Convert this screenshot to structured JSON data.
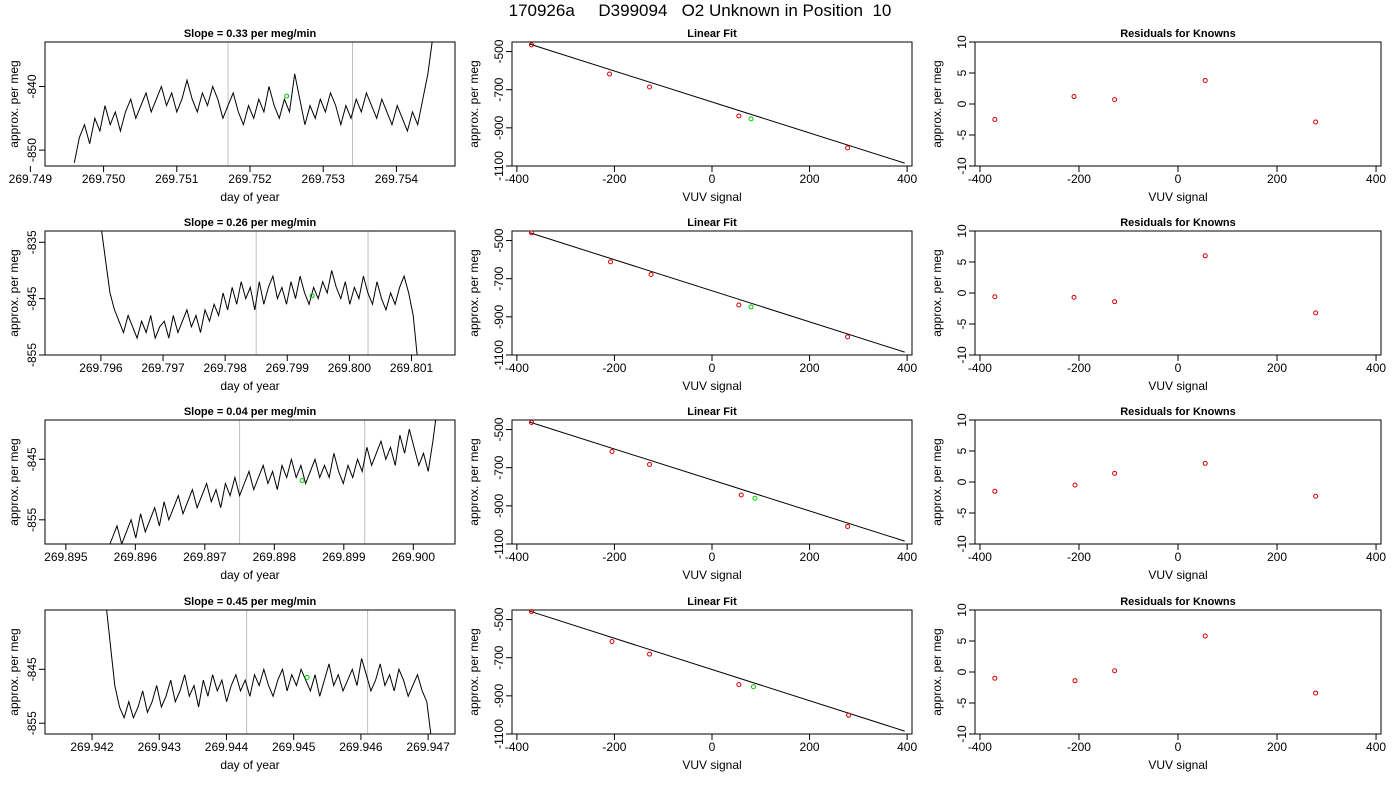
{
  "page_title": "170926a     D399094   O2 Unknown in Position  10",
  "chart_data": [
    {
      "type": "line",
      "title": "Slope =  0.33  per meg/min",
      "xlabel": "day of year",
      "ylabel": "approx. per meg",
      "xlim": [
        269.7492,
        269.7548
      ],
      "ylim": [
        -852.5,
        -833
      ],
      "xticks": [
        "269.749",
        "269.750",
        "269.751",
        "269.752",
        "269.753",
        "269.754"
      ],
      "yticks": [
        "-850",
        "-840"
      ],
      "ytick_values": [
        -850,
        -840
      ],
      "vlines": [
        269.7517,
        269.7534
      ],
      "trace": {
        "x_start": 269.7496,
        "x_end": 269.7545,
        "y": [
          -852,
          -848,
          -846,
          -849,
          -845,
          -847,
          -843,
          -846,
          -844,
          -847,
          -844,
          -842,
          -845,
          -843,
          -841,
          -844,
          -842,
          -840,
          -843,
          -841,
          -844,
          -842,
          -839,
          -842,
          -844,
          -841,
          -843,
          -840,
          -842,
          -845,
          -843,
          -841,
          -844,
          -846,
          -843,
          -845,
          -842,
          -844,
          -840,
          -843,
          -845,
          -842,
          -844,
          -838,
          -842,
          -846,
          -843,
          -845,
          -842,
          -844,
          -841,
          -843,
          -846,
          -843,
          -845,
          -842,
          -844,
          -841,
          -843,
          -845,
          -842,
          -844,
          -846,
          -843,
          -845,
          -847,
          -844,
          -846,
          -842,
          -838,
          -832
        ]
      },
      "marker": {
        "x": 269.7525,
        "y": -841.5
      }
    },
    {
      "type": "scatter",
      "title": "Linear Fit",
      "xlabel": "VUV signal",
      "ylabel": "approx. per meg",
      "xlim": [
        -410,
        410
      ],
      "ylim": [
        -1100,
        -450
      ],
      "xticks": [
        "-400",
        "-200",
        "0",
        "200",
        "400"
      ],
      "yticks": [
        "-500",
        "-700",
        "-900",
        "-1100"
      ],
      "points": [
        {
          "x": -370,
          "y": -465
        },
        {
          "x": -210,
          "y": -618
        },
        {
          "x": -128,
          "y": -686
        },
        {
          "x": 55,
          "y": -838
        },
        {
          "x": 278,
          "y": -1005
        }
      ],
      "unknown": {
        "x": 80,
        "y": -853
      },
      "fit_line": [
        [
          -375,
          -460
        ],
        [
          395,
          -1085
        ]
      ]
    },
    {
      "type": "scatter",
      "title": "Residuals for Knowns",
      "xlabel": "VUV signal",
      "ylabel": "approx. per meg",
      "xlim": [
        -410,
        410
      ],
      "ylim": [
        -10,
        10
      ],
      "xticks": [
        "-400",
        "-200",
        "0",
        "200",
        "400"
      ],
      "yticks": [
        "-10",
        "-5",
        "0",
        "5",
        "10"
      ],
      "points": [
        {
          "x": -370,
          "y": -2.5
        },
        {
          "x": -210,
          "y": 1.2
        },
        {
          "x": -128,
          "y": 0.7
        },
        {
          "x": 55,
          "y": 3.8
        },
        {
          "x": 278,
          "y": -2.9
        }
      ]
    },
    {
      "type": "line",
      "title": "Slope =  0.26  per meg/min",
      "xlabel": "day of year",
      "ylabel": "approx. per meg",
      "xlim": [
        269.7951,
        269.8017
      ],
      "ylim": [
        -855,
        -833
      ],
      "xticks": [
        "269.796",
        "269.797",
        "269.798",
        "269.799",
        "269.800",
        "269.801"
      ],
      "yticks": [
        "-835",
        "-845",
        "-855"
      ],
      "ytick_values": [
        -835,
        -845,
        -855
      ],
      "vlines": [
        269.7985,
        269.8003
      ],
      "trace": {
        "x_start": 269.796,
        "x_end": 269.8011,
        "y": [
          -832,
          -838,
          -844,
          -847,
          -849,
          -851,
          -848,
          -850,
          -852,
          -849,
          -851,
          -848,
          -852,
          -850,
          -849,
          -852,
          -848,
          -851,
          -849,
          -847,
          -850,
          -848,
          -851,
          -847,
          -849,
          -846,
          -848,
          -844,
          -847,
          -843,
          -846,
          -842,
          -845,
          -843,
          -847,
          -842,
          -846,
          -843,
          -841,
          -845,
          -843,
          -846,
          -842,
          -845,
          -841,
          -844,
          -846,
          -843,
          -845,
          -842,
          -844,
          -840,
          -843,
          -845,
          -842,
          -846,
          -843,
          -845,
          -841,
          -844,
          -846,
          -842,
          -845,
          -847,
          -844,
          -846,
          -843,
          -841,
          -844,
          -848,
          -856
        ]
      },
      "marker": {
        "x": 269.7994,
        "y": -844.5
      }
    },
    {
      "type": "scatter",
      "title": "Linear Fit",
      "xlabel": "VUV signal",
      "ylabel": "approx. per meg",
      "xlim": [
        -410,
        410
      ],
      "ylim": [
        -1100,
        -450
      ],
      "xticks": [
        "-400",
        "-200",
        "0",
        "200",
        "400"
      ],
      "yticks": [
        "-500",
        "-700",
        "-900",
        "-1100"
      ],
      "points": [
        {
          "x": -370,
          "y": -460
        },
        {
          "x": -208,
          "y": -612
        },
        {
          "x": -125,
          "y": -678
        },
        {
          "x": 55,
          "y": -838
        },
        {
          "x": 278,
          "y": -1005
        }
      ],
      "unknown": {
        "x": 80,
        "y": -848
      },
      "fit_line": [
        [
          -375,
          -458
        ],
        [
          395,
          -1085
        ]
      ]
    },
    {
      "type": "scatter",
      "title": "Residuals for Knowns",
      "xlabel": "VUV signal",
      "ylabel": "approx. per meg",
      "xlim": [
        -410,
        410
      ],
      "ylim": [
        -10,
        10
      ],
      "xticks": [
        "-400",
        "-200",
        "0",
        "200",
        "400"
      ],
      "yticks": [
        "-10",
        "-5",
        "0",
        "5",
        "10"
      ],
      "points": [
        {
          "x": -370,
          "y": -0.6
        },
        {
          "x": -210,
          "y": -0.7
        },
        {
          "x": -128,
          "y": -1.4
        },
        {
          "x": 55,
          "y": 6.0
        },
        {
          "x": 278,
          "y": -3.2
        }
      ]
    },
    {
      "type": "line",
      "title": "Slope =  0.04  per meg/min",
      "xlabel": "day of year",
      "ylabel": "approx. per meg",
      "xlim": [
        269.8947,
        269.9006
      ],
      "ylim": [
        -859,
        -838.5
      ],
      "xticks": [
        "269.895",
        "269.896",
        "269.897",
        "269.898",
        "269.899",
        "269.900"
      ],
      "yticks": [
        "-845",
        "-855"
      ],
      "ytick_values": [
        -845,
        -855
      ],
      "vlines": [
        269.8975,
        269.8993
      ],
      "trace": {
        "x_start": 269.8956,
        "x_end": 269.90035,
        "y": [
          -860,
          -858,
          -856,
          -859,
          -857,
          -855,
          -858,
          -854,
          -857,
          -855,
          -853,
          -856,
          -852,
          -855,
          -853,
          -851,
          -854,
          -852,
          -850,
          -853,
          -851,
          -849,
          -852,
          -850,
          -853,
          -849,
          -851,
          -848,
          -851,
          -849,
          -847,
          -850,
          -848,
          -846,
          -849,
          -847,
          -850,
          -846,
          -848,
          -845,
          -848,
          -846,
          -849,
          -847,
          -845,
          -848,
          -846,
          -848,
          -844,
          -847,
          -849,
          -846,
          -848,
          -845,
          -847,
          -843,
          -846,
          -844,
          -842,
          -845,
          -843,
          -846,
          -841,
          -844,
          -840,
          -843,
          -846,
          -844,
          -847,
          -842,
          -836
        ]
      },
      "marker": {
        "x": 269.8984,
        "y": -848.5
      }
    },
    {
      "type": "scatter",
      "title": "Linear Fit",
      "xlabel": "VUV signal",
      "ylabel": "approx. per meg",
      "xlim": [
        -410,
        410
      ],
      "ylim": [
        -1100,
        -450
      ],
      "xticks": [
        "-400",
        "-200",
        "0",
        "200",
        "400"
      ],
      "yticks": [
        "-500",
        "-700",
        "-900",
        "-1100"
      ],
      "points": [
        {
          "x": -370,
          "y": -463
        },
        {
          "x": -205,
          "y": -615
        },
        {
          "x": -128,
          "y": -683
        },
        {
          "x": 60,
          "y": -843
        },
        {
          "x": 278,
          "y": -1008
        }
      ],
      "unknown": {
        "x": 88,
        "y": -860
      },
      "fit_line": [
        [
          -375,
          -460
        ],
        [
          395,
          -1085
        ]
      ]
    },
    {
      "type": "scatter",
      "title": "Residuals for Knowns",
      "xlabel": "VUV signal",
      "ylabel": "approx. per meg",
      "xlim": [
        -410,
        410
      ],
      "ylim": [
        -10,
        10
      ],
      "xticks": [
        "-400",
        "-200",
        "0",
        "200",
        "400"
      ],
      "yticks": [
        "-10",
        "-5",
        "0",
        "5",
        "10"
      ],
      "points": [
        {
          "x": -370,
          "y": -1.5
        },
        {
          "x": -208,
          "y": -0.5
        },
        {
          "x": -128,
          "y": 1.4
        },
        {
          "x": 55,
          "y": 3.0
        },
        {
          "x": 278,
          "y": -2.3
        }
      ]
    },
    {
      "type": "line",
      "title": "Slope =  0.45  per meg/min",
      "xlabel": "day of year",
      "ylabel": "approx. per meg",
      "xlim": [
        269.9413,
        269.9474
      ],
      "ylim": [
        -857,
        -834
      ],
      "xticks": [
        "269.942",
        "269.943",
        "269.944",
        "269.945",
        "269.946",
        "269.947"
      ],
      "yticks": [
        "-845",
        "-855"
      ],
      "ytick_values": [
        -845,
        -855
      ],
      "vlines": [
        269.9443,
        269.9461
      ],
      "trace": {
        "x_start": 269.9422,
        "x_end": 269.94705,
        "y": [
          -832,
          -840,
          -848,
          -852,
          -854,
          -851,
          -854,
          -852,
          -849,
          -853,
          -851,
          -848,
          -852,
          -850,
          -847,
          -851,
          -849,
          -846,
          -850,
          -848,
          -852,
          -847,
          -850,
          -846,
          -849,
          -847,
          -851,
          -848,
          -846,
          -849,
          -847,
          -850,
          -846,
          -848,
          -845,
          -848,
          -850,
          -847,
          -845,
          -849,
          -846,
          -848,
          -845,
          -847,
          -849,
          -846,
          -850,
          -847,
          -844,
          -848,
          -846,
          -849,
          -847,
          -845,
          -848,
          -843,
          -846,
          -849,
          -847,
          -844,
          -848,
          -846,
          -849,
          -845,
          -847,
          -850,
          -848,
          -846,
          -849,
          -851,
          -858
        ]
      },
      "marker": {
        "x": 269.9452,
        "y": -846.5
      }
    },
    {
      "type": "scatter",
      "title": "Linear Fit",
      "xlabel": "VUV signal",
      "ylabel": "approx. per meg",
      "xlim": [
        -410,
        410
      ],
      "ylim": [
        -1100,
        -450
      ],
      "xticks": [
        "-400",
        "-200",
        "0",
        "200",
        "400"
      ],
      "yticks": [
        "-500",
        "-700",
        "-900",
        "-1100"
      ],
      "points": [
        {
          "x": -370,
          "y": -458
        },
        {
          "x": -205,
          "y": -615
        },
        {
          "x": -128,
          "y": -681
        },
        {
          "x": 55,
          "y": -841
        },
        {
          "x": 280,
          "y": -1002
        }
      ],
      "unknown": {
        "x": 85,
        "y": -852
      },
      "fit_line": [
        [
          -375,
          -455
        ],
        [
          395,
          -1085
        ]
      ]
    },
    {
      "type": "scatter",
      "title": "Residuals for Knowns",
      "xlabel": "VUV signal",
      "ylabel": "approx. per meg",
      "xlim": [
        -410,
        410
      ],
      "ylim": [
        -10,
        10
      ],
      "xticks": [
        "-400",
        "-200",
        "0",
        "200",
        "400"
      ],
      "yticks": [
        "-10",
        "-5",
        "0",
        "5",
        "10"
      ],
      "points": [
        {
          "x": -370,
          "y": -1.0
        },
        {
          "x": -208,
          "y": -1.4
        },
        {
          "x": -128,
          "y": 0.2
        },
        {
          "x": 55,
          "y": 5.8
        },
        {
          "x": 278,
          "y": -3.4
        }
      ]
    }
  ],
  "colors": {
    "known_point": "#d40000",
    "unknown_point": "#00cc00",
    "trace": "#000000",
    "vline": "#bfbfbf"
  }
}
